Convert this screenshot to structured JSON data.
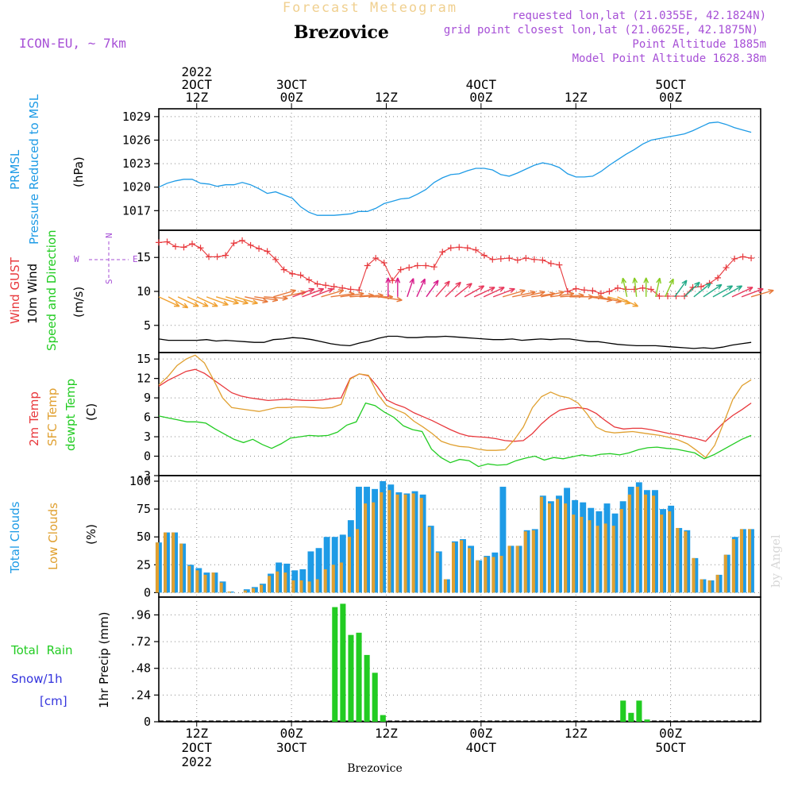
{
  "header": {
    "product": "Forecast Meteogram",
    "station": "Brezovice",
    "model": "ICON-EU, ~ 7km",
    "requested": "requested lon,lat (21.0355E, 42.1824N)",
    "gridpoint": "grid point closest lon,lat (21.0625E, 42.1875N)",
    "point_alt": "Point Altitude 1885m",
    "model_alt": "Model Point Altitude 1628.38m",
    "footer": "Brezovice",
    "watermark": "by Angel"
  },
  "colors": {
    "pressure": "#1e9be6",
    "gust": "#e8383c",
    "wind": "#000000",
    "temp": "#e8383c",
    "sfc": "#e0a030",
    "dew": "#22cc22",
    "total_cloud": "#1e9be6",
    "low_cloud": "#e0a030",
    "rain": "#22cc22",
    "snow": "#3333dd",
    "purple": "#a64fd6",
    "grid": "#888888"
  },
  "time_axis": {
    "start_hour_offset": 0,
    "end_hour_offset": 62,
    "top_labels": [
      {
        "h": 4,
        "lines": [
          "2022",
          "2OCT",
          "12Z"
        ]
      },
      {
        "h": 14,
        "lines": [
          "3OCT",
          "00Z"
        ]
      },
      {
        "h": 24,
        "lines": [
          "12Z"
        ]
      },
      {
        "h": 34,
        "lines": [
          "4OCT",
          "00Z"
        ]
      },
      {
        "h": 44,
        "lines": [
          "12Z"
        ]
      },
      {
        "h": 54,
        "lines": [
          "5OCT",
          "00Z"
        ]
      }
    ],
    "bottom_labels": [
      {
        "h": 4,
        "lines": [
          "12Z",
          "2OCT",
          "2022"
        ]
      },
      {
        "h": 14,
        "lines": [
          "00Z",
          "3OCT"
        ]
      },
      {
        "h": 24,
        "lines": [
          "12Z"
        ]
      },
      {
        "h": 34,
        "lines": [
          "00Z",
          "4OCT"
        ]
      },
      {
        "h": 44,
        "lines": [
          "12Z"
        ]
      },
      {
        "h": 54,
        "lines": [
          "00Z",
          "5OCT"
        ]
      }
    ]
  },
  "panel_labels": {
    "pressure": [
      "PRMSL",
      "Pressure Reduced to MSL",
      "(hPa)"
    ],
    "wind": [
      "Wind GUST",
      "10m Wind",
      "Speed and Direction",
      "(m/s)"
    ],
    "compass": {
      "n": "N",
      "s": "S",
      "w": "W",
      "e": "E"
    },
    "temp": [
      "2m Temp",
      "SFC Temp",
      "dewpt Temp",
      "(C)"
    ],
    "cloud": [
      "Total Clouds",
      "Low Clouds",
      "(%)"
    ],
    "precip": [
      "Total  Rain",
      "Snow/1h",
      "[cm]",
      "1hr Precip (mm)"
    ]
  },
  "chart_data": [
    {
      "type": "line",
      "title": "PRMSL Pressure Reduced to MSL",
      "ylabel": "(hPa)",
      "ylim": [
        1014.5,
        1030
      ],
      "yticks": [
        1017,
        1020,
        1023,
        1026,
        1029
      ],
      "x": [
        0,
        1,
        2,
        3,
        4,
        5,
        6,
        7,
        8,
        9,
        10,
        11,
        12,
        13,
        14,
        15,
        16,
        17,
        18,
        19,
        20,
        21,
        22,
        23,
        24,
        25,
        26,
        27,
        28,
        29,
        30,
        31,
        32,
        33,
        34,
        35,
        36,
        37,
        38,
        39,
        40,
        41,
        42,
        43,
        44,
        45,
        46,
        47,
        48,
        49,
        50,
        51,
        52,
        53,
        54,
        55,
        56,
        57,
        58,
        59,
        60,
        61,
        62
      ],
      "values": [
        1020.0,
        1020.5,
        1020.8,
        1021.0,
        1021.0,
        1020.5,
        1020.4,
        1020.1,
        1020.3,
        1020.3,
        1020.6,
        1020.3,
        1019.8,
        1019.2,
        1019.4,
        1019.0,
        1018.6,
        1017.5,
        1016.8,
        1016.4,
        1016.4,
        1016.4,
        1016.5,
        1016.6,
        1016.9,
        1016.9,
        1017.3,
        1017.9,
        1018.2,
        1018.5,
        1018.6,
        1019.1,
        1019.7,
        1020.6,
        1021.2,
        1021.6,
        1021.7,
        1022.1,
        1022.4,
        1022.4,
        1022.2,
        1021.6,
        1021.4,
        1021.8,
        1022.3,
        1022.8,
        1023.1,
        1022.9,
        1022.5,
        1021.7,
        1021.3,
        1021.3,
        1021.4,
        1022.0,
        1022.8,
        1023.5,
        1024.2,
        1024.8,
        1025.5,
        1026.0,
        1026.2,
        1026.4,
        1026.6
      ],
      "tail": [
        1026.8,
        1027.2,
        1027.7,
        1028.2,
        1028.3,
        1028.0,
        1027.6,
        1027.3,
        1027.0
      ]
    },
    {
      "type": "line",
      "title": "Wind GUST / 10m Wind Speed and Direction",
      "ylabel": "(m/s)",
      "ylim": [
        1,
        19
      ],
      "yticks": [
        5,
        10,
        15
      ],
      "gust": [
        17.2,
        17.3,
        16.6,
        16.5,
        17.0,
        16.4,
        15.1,
        15.1,
        15.3,
        17.1,
        17.5,
        16.8,
        16.3,
        15.9,
        14.7,
        13.2,
        12.6,
        12.4,
        11.7,
        11.1,
        10.9,
        10.7,
        10.5,
        10.3,
        10.2,
        13.8,
        14.9,
        14.2,
        11.6,
        13.2,
        13.5,
        13.8,
        13.8,
        13.6,
        15.8,
        16.4,
        16.5,
        16.4,
        16.1,
        15.3,
        14.7,
        14.8,
        14.9,
        14.6,
        14.9,
        14.7,
        14.6,
        14.1,
        13.9,
        10.0,
        10.4,
        10.2,
        10.1,
        9.7,
        10.0,
        10.5,
        10.3,
        10.3,
        10.5,
        10.3,
        9.3,
        9.3,
        9.3
      ],
      "gust_tail": [
        9.3,
        10.6,
        10.7,
        11.2,
        12.0,
        13.5,
        14.8,
        15.1,
        14.9
      ],
      "wind": [
        3.0,
        2.8,
        2.8,
        2.8,
        2.8,
        2.9,
        2.7,
        2.8,
        2.7,
        2.6,
        2.5,
        2.5,
        2.9,
        3.0,
        3.2,
        3.1,
        2.9,
        2.6,
        2.3,
        2.1,
        2.0,
        2.4,
        2.7,
        3.1,
        3.4,
        3.4,
        3.2,
        3.2,
        3.3,
        3.3,
        3.4,
        3.3,
        3.2,
        3.1,
        3.0,
        2.9,
        2.9,
        3.0,
        2.8,
        2.9,
        3.0,
        2.9,
        3.0,
        3.0,
        2.8,
        2.6,
        2.6,
        2.4,
        2.2,
        2.1,
        2.0,
        2.0,
        2.0,
        1.9,
        1.8,
        1.7,
        1.6,
        1.7,
        1.6,
        1.8,
        2.1,
        2.3,
        2.5
      ],
      "wind_arrow_dirs": [
        300,
        305,
        300,
        300,
        300,
        295,
        290,
        290,
        290,
        285,
        280,
        275,
        250,
        255,
        245,
        245,
        245,
        250,
        260,
        260,
        265,
        265,
        270,
        280,
        180,
        180,
        195,
        200,
        210,
        215,
        220,
        225,
        235,
        240,
        240,
        245,
        250,
        255,
        255,
        260,
        255,
        260,
        265,
        270,
        270,
        280,
        285,
        290,
        300,
        170,
        175,
        180,
        190,
        200,
        210,
        220,
        225,
        230,
        235,
        235,
        240,
        245,
        250
      ]
    },
    {
      "type": "line",
      "title": "2m Temp / SFC Temp / dewpt Temp",
      "ylabel": "(C)",
      "ylim": [
        -3,
        16
      ],
      "yticks": [
        -3,
        0,
        3,
        6,
        9,
        12,
        15
      ],
      "series": [
        {
          "name": "2m Temp",
          "values": [
            10.8,
            11.7,
            12.4,
            13.1,
            13.4,
            12.8,
            11.8,
            10.8,
            9.8,
            9.3,
            9.0,
            8.8,
            8.6,
            8.7,
            8.8,
            8.7,
            8.6,
            8.6,
            8.7,
            8.9,
            9.0,
            12.0,
            12.7,
            12.4,
            10.7,
            8.7,
            8.0,
            7.5,
            6.7,
            6.1,
            5.5,
            4.8,
            4.1,
            3.5,
            3.1,
            3.0,
            2.9,
            2.7,
            2.4,
            2.3,
            2.4,
            3.5,
            5.0,
            6.2,
            7.1,
            7.4,
            7.5,
            7.3,
            6.6,
            5.5,
            4.5,
            4.2,
            4.3,
            4.3,
            4.1,
            3.8,
            3.5,
            3.3,
            3.0,
            2.7,
            2.3,
            3.8,
            5.2,
            6.3,
            7.2,
            8.2
          ]
        },
        {
          "name": "SFC Temp",
          "values": [
            11.0,
            12.3,
            14.0,
            15.0,
            15.6,
            14.4,
            11.8,
            9.0,
            7.5,
            7.3,
            7.1,
            6.9,
            7.2,
            7.5,
            7.5,
            7.6,
            7.6,
            7.5,
            7.4,
            7.5,
            8.0,
            11.9,
            12.7,
            12.5,
            9.6,
            7.8,
            7.2,
            6.6,
            5.4,
            4.5,
            3.5,
            2.3,
            1.8,
            1.5,
            1.4,
            1.1,
            0.9,
            0.9,
            1.0,
            2.5,
            4.5,
            7.5,
            9.2,
            9.9,
            9.3,
            9.0,
            8.2,
            6.5,
            4.5,
            3.8,
            3.6,
            3.7,
            3.8,
            3.6,
            3.4,
            3.2,
            2.9,
            2.5,
            1.9,
            0.9,
            -0.2,
            1.7,
            5.2,
            8.8,
            10.9,
            11.8
          ]
        },
        {
          "name": "dewpt Temp",
          "values": [
            6.2,
            5.9,
            5.6,
            5.3,
            5.3,
            5.1,
            4.2,
            3.4,
            2.6,
            2.1,
            2.6,
            1.8,
            1.2,
            1.9,
            2.8,
            3.0,
            3.2,
            3.1,
            3.2,
            3.7,
            4.8,
            5.3,
            8.2,
            7.8,
            6.8,
            6.0,
            4.7,
            4.1,
            3.8,
            1.1,
            -0.2,
            -1.0,
            -0.5,
            -0.7,
            -1.6,
            -1.2,
            -1.4,
            -1.3,
            -0.7,
            -0.3,
            0.0,
            -0.6,
            -0.2,
            -0.4,
            -0.1,
            0.2,
            0.0,
            0.3,
            0.4,
            0.2,
            0.5,
            1.0,
            1.3,
            1.4,
            1.2,
            1.1,
            0.8,
            0.5,
            -0.4,
            0.2,
            1.0,
            1.8,
            2.6,
            3.2
          ]
        }
      ]
    },
    {
      "type": "bar",
      "title": "Total Clouds / Low Clouds",
      "ylabel": "(%)",
      "ylim": [
        -4,
        105
      ],
      "yticks": [
        0,
        25,
        50,
        75,
        100
      ],
      "series": [
        {
          "name": "Total Clouds",
          "values": [
            45,
            54,
            54,
            44,
            25,
            22,
            18,
            18,
            10,
            1,
            0,
            3,
            5,
            8,
            17,
            27,
            26,
            20,
            21,
            37,
            40,
            50,
            50,
            52,
            65,
            95,
            95,
            93,
            100,
            97,
            90,
            89,
            91,
            88,
            60,
            37,
            12,
            46,
            48,
            42,
            29,
            33,
            36,
            95,
            42,
            42,
            56,
            57,
            87,
            82,
            87,
            94,
            83,
            81,
            76,
            73,
            80,
            71,
            82,
            95,
            99,
            92,
            92,
            75,
            78,
            58,
            56,
            31,
            12,
            11,
            16,
            34,
            50,
            57,
            57
          ]
        },
        {
          "name": "Low Clouds",
          "values": [
            45,
            54,
            54,
            44,
            24,
            20,
            16,
            18,
            9,
            1,
            0,
            2,
            4,
            7,
            15,
            19,
            18,
            11,
            11,
            10,
            12,
            21,
            25,
            27,
            50,
            57,
            80,
            81,
            90,
            92,
            88,
            88,
            89,
            85,
            59,
            36,
            12,
            45,
            47,
            40,
            29,
            32,
            32,
            33,
            42,
            42,
            55,
            56,
            86,
            80,
            84,
            80,
            70,
            68,
            65,
            60,
            62,
            60,
            75,
            88,
            95,
            88,
            87,
            70,
            73,
            58,
            55,
            31,
            12,
            11,
            16,
            34,
            48,
            57,
            57
          ]
        }
      ]
    },
    {
      "type": "bar",
      "title": "1hr Precip",
      "ylabel": "1hr Precip (mm)",
      "ylim": [
        0,
        1.12
      ],
      "yticks": [
        0,
        0.24,
        0.48,
        0.72,
        0.96
      ],
      "series": [
        {
          "name": "Total Rain",
          "values": [
            0,
            0,
            0,
            0,
            0,
            0,
            0,
            0,
            0,
            0,
            0,
            0,
            0,
            0,
            0,
            0,
            0,
            0,
            0,
            0,
            0,
            0,
            1.03,
            1.06,
            0.78,
            0.8,
            0.6,
            0.44,
            0.06,
            0,
            0,
            0,
            0,
            0,
            0,
            0,
            0,
            0,
            0,
            0,
            0,
            0,
            0,
            0,
            0,
            0,
            0,
            0,
            0,
            0,
            0,
            0,
            0,
            0,
            0,
            0,
            0,
            0,
            0.19,
            0.08,
            0.19,
            0.02,
            0,
            0,
            0,
            0,
            0,
            0,
            0,
            0,
            0,
            0,
            0,
            0,
            0
          ]
        },
        {
          "name": "Snow/1h",
          "values": []
        }
      ]
    }
  ]
}
